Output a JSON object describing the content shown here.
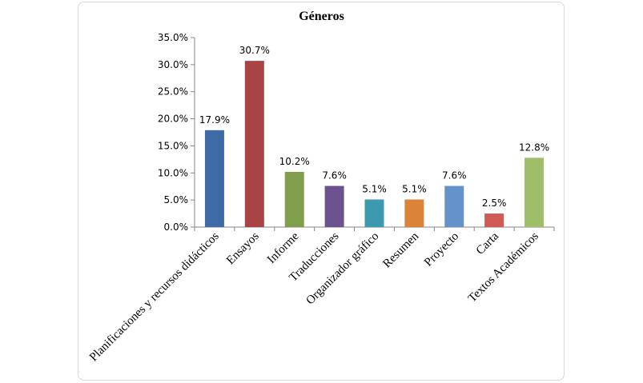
{
  "chart_data": {
    "type": "bar",
    "title": "Géneros",
    "categories": [
      "Planificaciones y recursos didácticos",
      "Ensayos",
      "Informe",
      "Traducciones",
      "Organizador gráfico",
      "Resumen",
      "Proyecto",
      "Carta",
      "Textos Académicos"
    ],
    "values": [
      17.9,
      30.7,
      10.2,
      7.6,
      5.1,
      5.1,
      7.6,
      2.5,
      12.8
    ],
    "data_labels": [
      "17.9%",
      "30.7%",
      "10.2%",
      "7.6%",
      "5.1%",
      "5.1%",
      "7.6%",
      "2.5%",
      "12.8%"
    ],
    "colors": [
      "#3E6AA6",
      "#A84443",
      "#819E4C",
      "#6C5390",
      "#3D99B0",
      "#DA843A",
      "#6692CC",
      "#D05A56",
      "#9EBE6A"
    ],
    "ylim": [
      0,
      35
    ],
    "yticks": [
      0,
      5,
      10,
      15,
      20,
      25,
      30,
      35
    ],
    "ytick_labels": [
      "0.0%",
      "5.0%",
      "10.0%",
      "15.0%",
      "20.0%",
      "25.0%",
      "30.0%",
      "35.0%"
    ],
    "grid": false,
    "legend": "none"
  }
}
